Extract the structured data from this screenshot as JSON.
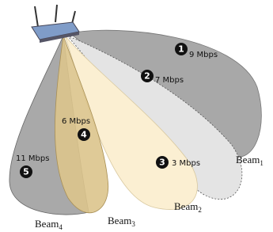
{
  "nodes": [
    {
      "number": "1",
      "rate": "9 Mbps"
    },
    {
      "number": "2",
      "rate": "7 Mbps"
    },
    {
      "number": "3",
      "rate": "3 Mbps"
    },
    {
      "number": "4",
      "rate": "6 Mbps"
    },
    {
      "number": "5",
      "rate": "11 Mbps"
    }
  ],
  "beams": [
    {
      "label": "Beam",
      "index": "1"
    },
    {
      "label": "Beam",
      "index": "2"
    },
    {
      "label": "Beam",
      "index": "3"
    },
    {
      "label": "Beam",
      "index": "4"
    }
  ]
}
